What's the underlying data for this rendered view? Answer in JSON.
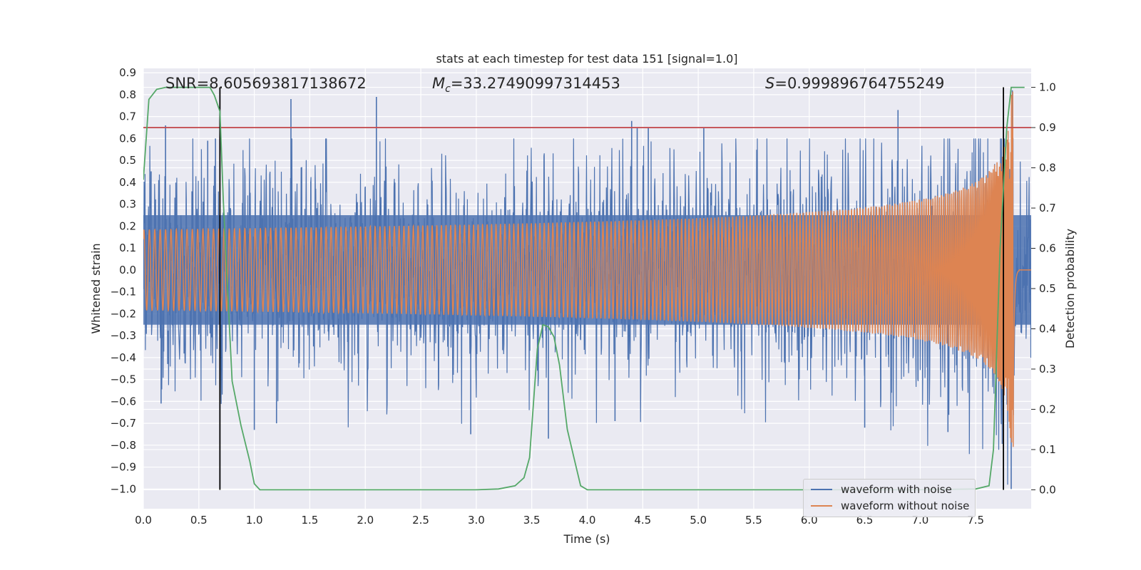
{
  "chart_data": {
    "type": "line",
    "title": "stats at each timestep for test data 151 [signal=1.0]",
    "xlabel": "Time (s)",
    "ylabel": "Whitened strain",
    "y2label": "Detection probability",
    "xlim": [
      0.0,
      8.0
    ],
    "ylim": [
      -1.09,
      0.92
    ],
    "y2lim": [
      -0.047,
      1.047
    ],
    "xticks": [
      "0.0",
      "0.5",
      "1.0",
      "1.5",
      "2.0",
      "2.5",
      "3.0",
      "3.5",
      "4.0",
      "4.5",
      "5.0",
      "5.5",
      "6.0",
      "6.5",
      "7.0",
      "7.5"
    ],
    "yticks": [
      "0.9",
      "0.8",
      "0.7",
      "0.6",
      "0.5",
      "0.4",
      "0.3",
      "0.2",
      "0.1",
      "0.0",
      "−0.1",
      "−0.2",
      "−0.3",
      "−0.4",
      "−0.5",
      "−0.6",
      "−0.7",
      "−0.8",
      "−0.9",
      "−1.0"
    ],
    "y2ticks": [
      "1.0",
      "0.9",
      "0.8",
      "0.7",
      "0.6",
      "0.5",
      "0.4",
      "0.3",
      "0.2",
      "0.1",
      "0.0"
    ],
    "annotations": {
      "snr": "SNR=8.605693817138672",
      "mc_symbol": "M",
      "mc_sub": "c",
      "mc_value": "=33.27490997314453",
      "s_symbol": "S",
      "s_value": "=0.999896764755249"
    },
    "threshold": {
      "value": 0.9,
      "axis": "detection_probability",
      "color": "#c44e52"
    },
    "vertical_markers": [
      0.69,
      7.75
    ],
    "noisy_waveform": {
      "name": "waveform with noise",
      "color": "#4c72b0",
      "peaks_positive": [
        [
          0.07,
          0.45
        ],
        [
          0.2,
          0.66
        ],
        [
          0.58,
          0.59
        ],
        [
          0.65,
          0.6
        ],
        [
          1.33,
          0.78
        ],
        [
          2.1,
          0.79
        ],
        [
          4.4,
          0.68
        ],
        [
          4.45,
          0.65
        ],
        [
          4.55,
          0.65
        ],
        [
          5.05,
          0.65
        ],
        [
          6.8,
          0.73
        ],
        [
          7.83,
          0.82
        ]
      ],
      "peaks_negative": [
        [
          0.16,
          -0.61
        ],
        [
          1.0,
          -0.73
        ],
        [
          1.2,
          -0.7
        ],
        [
          2.95,
          -0.75
        ],
        [
          3.65,
          -0.77
        ],
        [
          4.25,
          -0.69
        ],
        [
          6.5,
          -0.72
        ],
        [
          7.25,
          -0.74
        ],
        [
          7.82,
          -1.0
        ]
      ]
    },
    "clean_waveform": {
      "name": "waveform without noise",
      "color": "#dd8452",
      "merger_time": 7.84,
      "peak_amplitude": 0.82
    },
    "detection_probability": {
      "color": "#55a868",
      "x": [
        0.0,
        0.05,
        0.12,
        0.2,
        0.4,
        0.6,
        0.64,
        0.69,
        0.72,
        0.75,
        0.8,
        0.88,
        0.96,
        1.0,
        1.05,
        1.1,
        1.5,
        2.0,
        3.0,
        3.2,
        3.35,
        3.43,
        3.48,
        3.55,
        3.6,
        3.65,
        3.7,
        3.75,
        3.82,
        3.88,
        3.94,
        4.0,
        5.0,
        6.0,
        7.0,
        7.5,
        7.62,
        7.66,
        7.72,
        7.78,
        7.82,
        7.86,
        7.9,
        7.94
      ],
      "y": [
        0.77,
        0.97,
        0.995,
        1.0,
        1.0,
        1.0,
        0.98,
        0.94,
        0.72,
        0.55,
        0.27,
        0.16,
        0.07,
        0.015,
        0.0,
        0.0,
        0.0,
        0.0,
        0.0,
        0.002,
        0.01,
        0.03,
        0.08,
        0.35,
        0.41,
        0.405,
        0.38,
        0.31,
        0.15,
        0.08,
        0.01,
        0.0,
        0.0,
        0.0,
        0.0,
        0.002,
        0.01,
        0.1,
        0.6,
        0.9,
        1.0,
        1.0,
        1.0,
        1.0
      ]
    },
    "legend": {
      "position": "lower-right",
      "entries": [
        "waveform with noise",
        "waveform without noise"
      ]
    }
  }
}
